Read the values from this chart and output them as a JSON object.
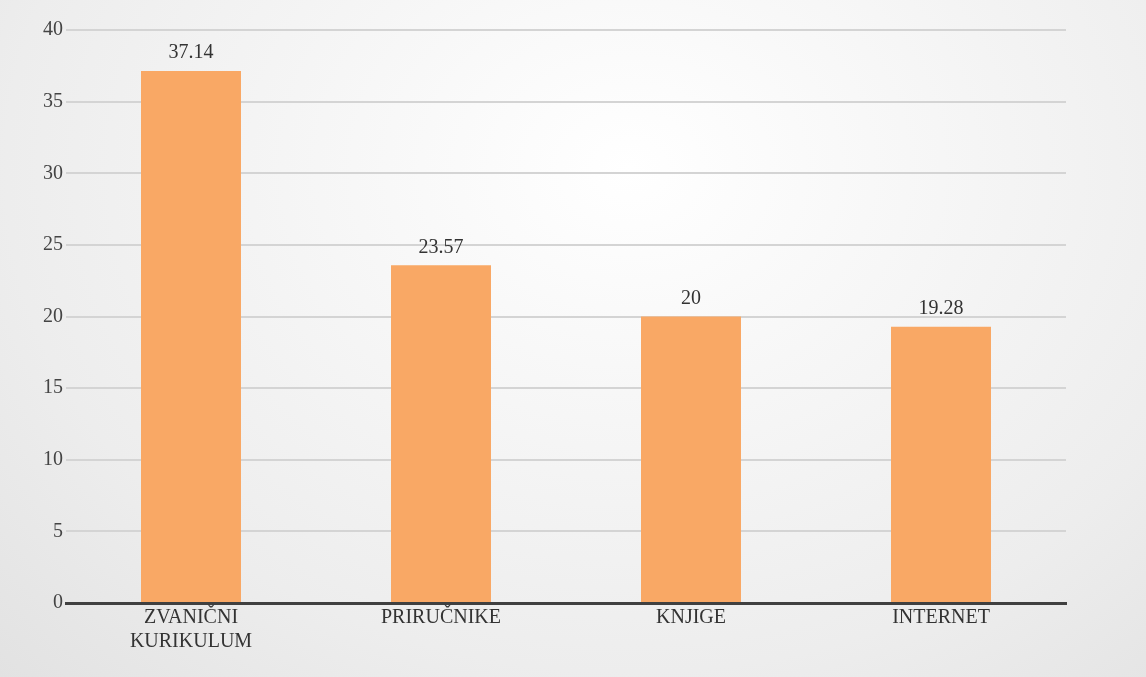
{
  "chart_data": {
    "type": "bar",
    "categories": [
      "ZVANIČNI KURIKULUM",
      "PRIRUČNIKE",
      "KNJIGE",
      "INTERNET"
    ],
    "values": [
      37.14,
      23.57,
      20,
      19.28
    ],
    "color": "#f9a865",
    "ylim": [
      0,
      40
    ],
    "yticks": [
      0,
      5,
      10,
      15,
      20,
      25,
      30,
      35,
      40
    ],
    "grid": "y",
    "data_labels": true
  }
}
